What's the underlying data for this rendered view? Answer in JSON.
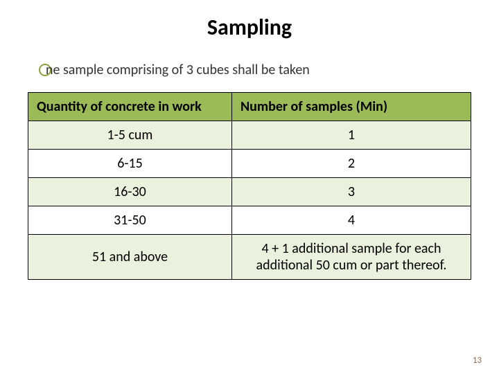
{
  "title": {
    "text": "Sampling",
    "fontsize": 32,
    "color": "#000000"
  },
  "bullet": {
    "text": "ne sample comprising of 3 cubes shall be taken",
    "fontsize": 20,
    "color": "#333333",
    "circle_color": "#8aa13b"
  },
  "table": {
    "header_bg": "#9bbb59",
    "row_alt_bg": "#eaf1dd",
    "row_bg": "#ffffff",
    "border_color": "#000000",
    "fontsize": 20,
    "columns": [
      "Quantity of concrete in work",
      "Number of samples (Min)"
    ],
    "col_widths": [
      "46%",
      "54%"
    ],
    "rows": [
      [
        "1-5   cum",
        "1"
      ],
      [
        "6-15",
        "2"
      ],
      [
        "16-30",
        "3"
      ],
      [
        "31-50",
        "4"
      ],
      [
        "51 and above",
        "4 + 1 additional sample for each additional 50 cum or part thereof."
      ]
    ]
  },
  "page_number": "13"
}
